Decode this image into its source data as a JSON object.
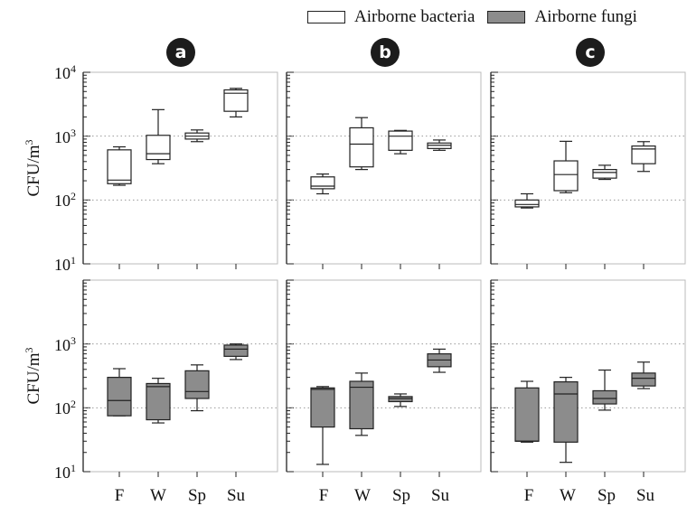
{
  "legend": {
    "bacteria": "Airborne bacteria",
    "fungi": "Airborne fungi"
  },
  "colors": {
    "bacteria_fill": "#ffffff",
    "fungi_fill": "#8c8c8c",
    "stroke": "#222222",
    "grid": "#9a9a9a"
  },
  "panel_labels": [
    "a",
    "b",
    "c"
  ],
  "y_axis_label": {
    "main": "CFU/m",
    "sup": "3"
  },
  "y_ticks_top": [
    {
      "base": "10",
      "exp": "1",
      "value": 10
    },
    {
      "base": "10",
      "exp": "2",
      "value": 100
    },
    {
      "base": "10",
      "exp": "3",
      "value": 1000
    },
    {
      "base": "10",
      "exp": "4",
      "value": 10000
    }
  ],
  "y_ticks_bottom": [
    {
      "base": "10",
      "exp": "1",
      "value": 10
    },
    {
      "base": "10",
      "exp": "2",
      "value": 100
    },
    {
      "base": "10",
      "exp": "3",
      "value": 1000
    }
  ],
  "seasons": [
    "F",
    "W",
    "Sp",
    "Su"
  ],
  "chart_data": {
    "type": "boxplot",
    "y_scale": "log",
    "ylabel": "CFU/m3",
    "ylim_top": [
      10,
      10000
    ],
    "ylim_bottom": [
      10,
      10000
    ],
    "categories": [
      "F",
      "W",
      "Sp",
      "Su"
    ],
    "grid": "dotted horizontal at 10^2 and 10^3",
    "legend_position": "top-right",
    "panels": [
      {
        "label": "a",
        "bacteria": [
          {
            "category": "F",
            "min": 170,
            "q1": 180,
            "median": 205,
            "q3": 610,
            "max": 680
          },
          {
            "category": "W",
            "min": 370,
            "q1": 430,
            "median": 530,
            "q3": 1030,
            "max": 2600
          },
          {
            "category": "Sp",
            "min": 820,
            "q1": 900,
            "median": 1000,
            "q3": 1120,
            "max": 1250
          },
          {
            "category": "Su",
            "min": 2000,
            "q1": 2450,
            "median": 4700,
            "q3": 5300,
            "max": 5600
          }
        ],
        "fungi": [
          {
            "category": "F",
            "min": 75,
            "q1": 75,
            "median": 130,
            "q3": 300,
            "max": 410
          },
          {
            "category": "W",
            "min": 58,
            "q1": 65,
            "median": 215,
            "q3": 240,
            "max": 290
          },
          {
            "category": "Sp",
            "min": 90,
            "q1": 140,
            "median": 180,
            "q3": 380,
            "max": 470
          },
          {
            "category": "Su",
            "min": 570,
            "q1": 640,
            "median": 830,
            "q3": 960,
            "max": 1000
          }
        ]
      },
      {
        "label": "b",
        "bacteria": [
          {
            "category": "F",
            "min": 125,
            "q1": 150,
            "median": 165,
            "q3": 230,
            "max": 255
          },
          {
            "category": "W",
            "min": 300,
            "q1": 330,
            "median": 750,
            "q3": 1350,
            "max": 1950
          },
          {
            "category": "Sp",
            "min": 530,
            "q1": 600,
            "median": 1000,
            "q3": 1200,
            "max": 1230
          },
          {
            "category": "Su",
            "min": 600,
            "q1": 640,
            "median": 720,
            "q3": 780,
            "max": 870
          }
        ],
        "fungi": [
          {
            "category": "F",
            "min": 13,
            "q1": 50,
            "median": 195,
            "q3": 205,
            "max": 215
          },
          {
            "category": "W",
            "min": 37,
            "q1": 47,
            "median": 210,
            "q3": 260,
            "max": 350
          },
          {
            "category": "Sp",
            "min": 105,
            "q1": 125,
            "median": 140,
            "q3": 150,
            "max": 165
          },
          {
            "category": "Su",
            "min": 360,
            "q1": 440,
            "median": 560,
            "q3": 700,
            "max": 830
          }
        ]
      },
      {
        "label": "c",
        "bacteria": [
          {
            "category": "F",
            "min": 75,
            "q1": 78,
            "median": 85,
            "q3": 100,
            "max": 125
          },
          {
            "category": "W",
            "min": 130,
            "q1": 140,
            "median": 250,
            "q3": 410,
            "max": 830
          },
          {
            "category": "Sp",
            "min": 210,
            "q1": 220,
            "median": 270,
            "q3": 300,
            "max": 350
          },
          {
            "category": "Su",
            "min": 280,
            "q1": 370,
            "median": 630,
            "q3": 700,
            "max": 820
          }
        ],
        "fungi": [
          {
            "category": "F",
            "min": 29,
            "q1": 30,
            "median": 30,
            "q3": 205,
            "max": 260
          },
          {
            "category": "W",
            "min": 14,
            "q1": 29,
            "median": 165,
            "q3": 255,
            "max": 300
          },
          {
            "category": "Sp",
            "min": 92,
            "q1": 115,
            "median": 140,
            "q3": 185,
            "max": 390
          },
          {
            "category": "Su",
            "min": 200,
            "q1": 220,
            "median": 290,
            "q3": 350,
            "max": 520
          }
        ]
      }
    ]
  }
}
